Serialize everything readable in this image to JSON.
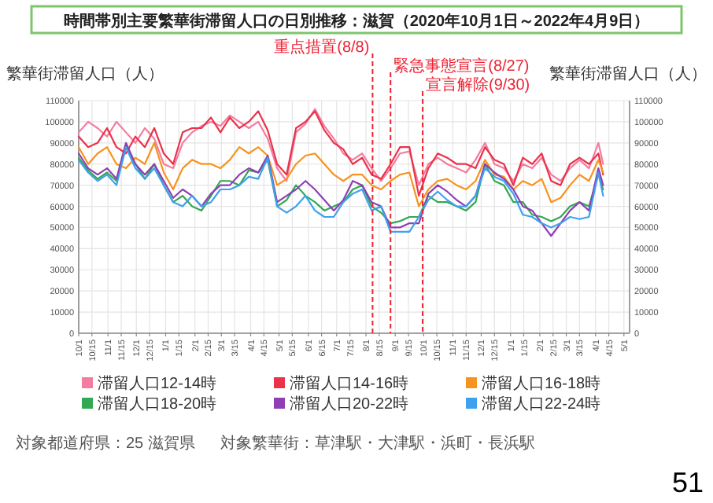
{
  "chart_data": {
    "type": "line",
    "title": "時間帯別主要繁華街滞留人口の日別推移：滋賀（2020年10月1日～2022年4月9日）",
    "ylabel": "繁華街滞留人口（人）",
    "y2label": "繁華街滞留人口（人）",
    "x": [
      "2020-10-01",
      "2020-10-11",
      "2020-10-21",
      "2020-10-31",
      "2020-11-10",
      "2020-11-20",
      "2020-11-30",
      "2020-12-10",
      "2020-12-20",
      "2020-12-30",
      "2021-01-09",
      "2021-01-19",
      "2021-01-29",
      "2021-02-08",
      "2021-02-18",
      "2021-02-28",
      "2021-03-10",
      "2021-03-20",
      "2021-03-30",
      "2021-04-09",
      "2021-04-19",
      "2021-04-29",
      "2021-05-09",
      "2021-05-19",
      "2021-05-29",
      "2021-06-08",
      "2021-06-18",
      "2021-06-28",
      "2021-07-08",
      "2021-07-18",
      "2021-07-28",
      "2021-08-07",
      "2021-08-17",
      "2021-08-27",
      "2021-09-06",
      "2021-09-16",
      "2021-09-26",
      "2021-10-06",
      "2021-10-16",
      "2021-10-26",
      "2021-11-05",
      "2021-11-15",
      "2021-11-25",
      "2021-12-05",
      "2021-12-15",
      "2021-12-25",
      "2022-01-04",
      "2022-01-14",
      "2022-01-24",
      "2022-02-03",
      "2022-02-13",
      "2022-02-23",
      "2022-03-05",
      "2022-03-15",
      "2022-03-25",
      "2022-04-04",
      "2022-04-09"
    ],
    "series": [
      {
        "name": "滞留人口12-14時",
        "color": "#f47ca0",
        "values": [
          95000,
          100000,
          97000,
          93000,
          100000,
          95000,
          90000,
          97000,
          92000,
          80000,
          78000,
          90000,
          95000,
          98000,
          100000,
          98000,
          103000,
          100000,
          97000,
          100000,
          92000,
          78000,
          72000,
          95000,
          99000,
          106000,
          98000,
          92000,
          85000,
          82000,
          85000,
          78000,
          72000,
          78000,
          85000,
          86000,
          70000,
          80000,
          83000,
          80000,
          78000,
          76000,
          82000,
          90000,
          80000,
          78000,
          72000,
          80000,
          78000,
          83000,
          75000,
          72000,
          78000,
          82000,
          78000,
          90000,
          80000
        ]
      },
      {
        "name": "滞留人口14-16時",
        "color": "#e8334a",
        "values": [
          93000,
          88000,
          90000,
          97000,
          88000,
          85000,
          93000,
          88000,
          97000,
          85000,
          80000,
          95000,
          97000,
          97000,
          102000,
          95000,
          102000,
          97000,
          100000,
          105000,
          96000,
          80000,
          75000,
          97000,
          100000,
          105000,
          96000,
          90000,
          87000,
          80000,
          83000,
          75000,
          73000,
          80000,
          88000,
          88000,
          65000,
          78000,
          85000,
          83000,
          80000,
          80000,
          78000,
          88000,
          82000,
          80000,
          70000,
          83000,
          80000,
          85000,
          72000,
          70000,
          80000,
          83000,
          80000,
          85000,
          75000
        ]
      },
      {
        "name": "滞留人口16-18時",
        "color": "#f7931e",
        "values": [
          88000,
          80000,
          85000,
          88000,
          80000,
          78000,
          83000,
          80000,
          90000,
          76000,
          68000,
          78000,
          82000,
          80000,
          80000,
          78000,
          82000,
          88000,
          85000,
          88000,
          84000,
          70000,
          73000,
          80000,
          84000,
          85000,
          80000,
          75000,
          72000,
          75000,
          75000,
          70000,
          68000,
          72000,
          75000,
          76000,
          60000,
          68000,
          72000,
          73000,
          70000,
          68000,
          72000,
          82000,
          75000,
          74000,
          68000,
          72000,
          70000,
          73000,
          62000,
          64000,
          70000,
          75000,
          72000,
          82000,
          76000
        ]
      },
      {
        "name": "滞留人口18-20時",
        "color": "#33a852",
        "values": [
          83000,
          77000,
          73000,
          76000,
          72000,
          88000,
          80000,
          73000,
          80000,
          70000,
          62000,
          65000,
          60000,
          58000,
          65000,
          72000,
          72000,
          70000,
          77000,
          76000,
          82000,
          60000,
          63000,
          70000,
          65000,
          62000,
          58000,
          60000,
          62000,
          68000,
          70000,
          60000,
          57000,
          52000,
          53000,
          55000,
          55000,
          65000,
          62000,
          62000,
          60000,
          58000,
          62000,
          80000,
          72000,
          70000,
          62000,
          62000,
          56000,
          55000,
          53000,
          55000,
          60000,
          62000,
          60000,
          75000,
          68000
        ]
      },
      {
        "name": "滞留人口20-22時",
        "color": "#8e3fb5",
        "values": [
          85000,
          78000,
          75000,
          78000,
          73000,
          90000,
          80000,
          75000,
          80000,
          72000,
          64000,
          68000,
          65000,
          60000,
          66000,
          70000,
          70000,
          75000,
          78000,
          76000,
          84000,
          62000,
          65000,
          68000,
          72000,
          68000,
          63000,
          58000,
          63000,
          72000,
          70000,
          62000,
          60000,
          50000,
          50000,
          52000,
          52000,
          66000,
          70000,
          67000,
          63000,
          60000,
          65000,
          80000,
          76000,
          73000,
          68000,
          60000,
          58000,
          52000,
          46000,
          52000,
          58000,
          62000,
          58000,
          78000,
          70000
        ]
      },
      {
        "name": "滞留人口22-24時",
        "color": "#3fa0ee",
        "values": [
          82000,
          76000,
          72000,
          75000,
          70000,
          88000,
          78000,
          73000,
          78000,
          70000,
          62000,
          60000,
          65000,
          60000,
          62000,
          68000,
          68000,
          70000,
          74000,
          73000,
          83000,
          60000,
          57000,
          60000,
          65000,
          58000,
          55000,
          55000,
          62000,
          66000,
          68000,
          58000,
          60000,
          48000,
          48000,
          48000,
          55000,
          63000,
          67000,
          63000,
          60000,
          60000,
          65000,
          78000,
          74000,
          72000,
          66000,
          56000,
          55000,
          52000,
          50000,
          52000,
          55000,
          54000,
          55000,
          76000,
          65000
        ]
      }
    ],
    "xlim": [
      "2020-10-01",
      "2022-05-07"
    ],
    "xticks": [
      {
        "value": "2020-10-01",
        "label": "10/1"
      },
      {
        "value": "2020-10-15",
        "label": "10/15"
      },
      {
        "value": "2020-11-01",
        "label": "11/1"
      },
      {
        "value": "2020-11-15",
        "label": "11/15"
      },
      {
        "value": "2020-12-01",
        "label": "12/1"
      },
      {
        "value": "2020-12-15",
        "label": "12/15"
      },
      {
        "value": "2021-01-01",
        "label": "1/1"
      },
      {
        "value": "2021-01-15",
        "label": "1/15"
      },
      {
        "value": "2021-02-01",
        "label": "2/1"
      },
      {
        "value": "2021-02-15",
        "label": "2/15"
      },
      {
        "value": "2021-03-01",
        "label": "3/1"
      },
      {
        "value": "2021-03-15",
        "label": "3/15"
      },
      {
        "value": "2021-04-01",
        "label": "4/1"
      },
      {
        "value": "2021-04-15",
        "label": "4/15"
      },
      {
        "value": "2021-05-01",
        "label": "5/1"
      },
      {
        "value": "2021-05-15",
        "label": "5/15"
      },
      {
        "value": "2021-06-01",
        "label": "6/1"
      },
      {
        "value": "2021-06-15",
        "label": "6/15"
      },
      {
        "value": "2021-07-01",
        "label": "7/1"
      },
      {
        "value": "2021-07-15",
        "label": "7/15"
      },
      {
        "value": "2021-08-01",
        "label": "8/1"
      },
      {
        "value": "2021-08-15",
        "label": "8/15"
      },
      {
        "value": "2021-09-01",
        "label": "9/1"
      },
      {
        "value": "2021-09-15",
        "label": "9/15"
      },
      {
        "value": "2021-10-01",
        "label": "10/1"
      },
      {
        "value": "2021-10-15",
        "label": "10/15"
      },
      {
        "value": "2021-11-01",
        "label": "11/1"
      },
      {
        "value": "2021-11-15",
        "label": "11/15"
      },
      {
        "value": "2021-12-01",
        "label": "12/1"
      },
      {
        "value": "2021-12-15",
        "label": "12/15"
      },
      {
        "value": "2022-01-01",
        "label": "1/1"
      },
      {
        "value": "2022-01-15",
        "label": "1/15"
      },
      {
        "value": "2022-02-01",
        "label": "2/1"
      },
      {
        "value": "2022-02-15",
        "label": "2/15"
      },
      {
        "value": "2022-03-01",
        "label": "3/1"
      },
      {
        "value": "2022-03-15",
        "label": "3/15"
      },
      {
        "value": "2022-04-01",
        "label": "4/1"
      },
      {
        "value": "2022-04-15",
        "label": "4/15"
      },
      {
        "value": "2022-05-01",
        "label": "5/1"
      }
    ],
    "ylim": [
      0,
      110000
    ],
    "yticks": [
      0,
      10000,
      20000,
      30000,
      40000,
      50000,
      60000,
      70000,
      80000,
      90000,
      100000,
      110000
    ],
    "y2lim": [
      0,
      110000
    ],
    "y2ticks": [
      0,
      10000,
      20000,
      30000,
      40000,
      50000,
      60000,
      70000,
      80000,
      90000,
      100000,
      110000
    ],
    "ref_lines": [
      {
        "axis": "x",
        "value": "2021-08-08",
        "label": "重点措置(8/8)",
        "color": "#ee2233",
        "line_style": "dashed"
      },
      {
        "axis": "x",
        "value": "2021-08-27",
        "label": "緊急事態宣言(8/27)",
        "color": "#ee2233",
        "line_style": "dashed"
      },
      {
        "axis": "x",
        "value": "2021-09-30",
        "label": "宣言解除(9/30)",
        "color": "#ee2233",
        "line_style": "dashed"
      }
    ],
    "annotations": [
      "対象都道府県：25 滋賀県",
      "対象繁華街：草津駅・大津駅・浜町・長浜駅",
      "51"
    ],
    "grid": true,
    "legend": "bottom",
    "marker": "none",
    "line_style": "solid"
  }
}
